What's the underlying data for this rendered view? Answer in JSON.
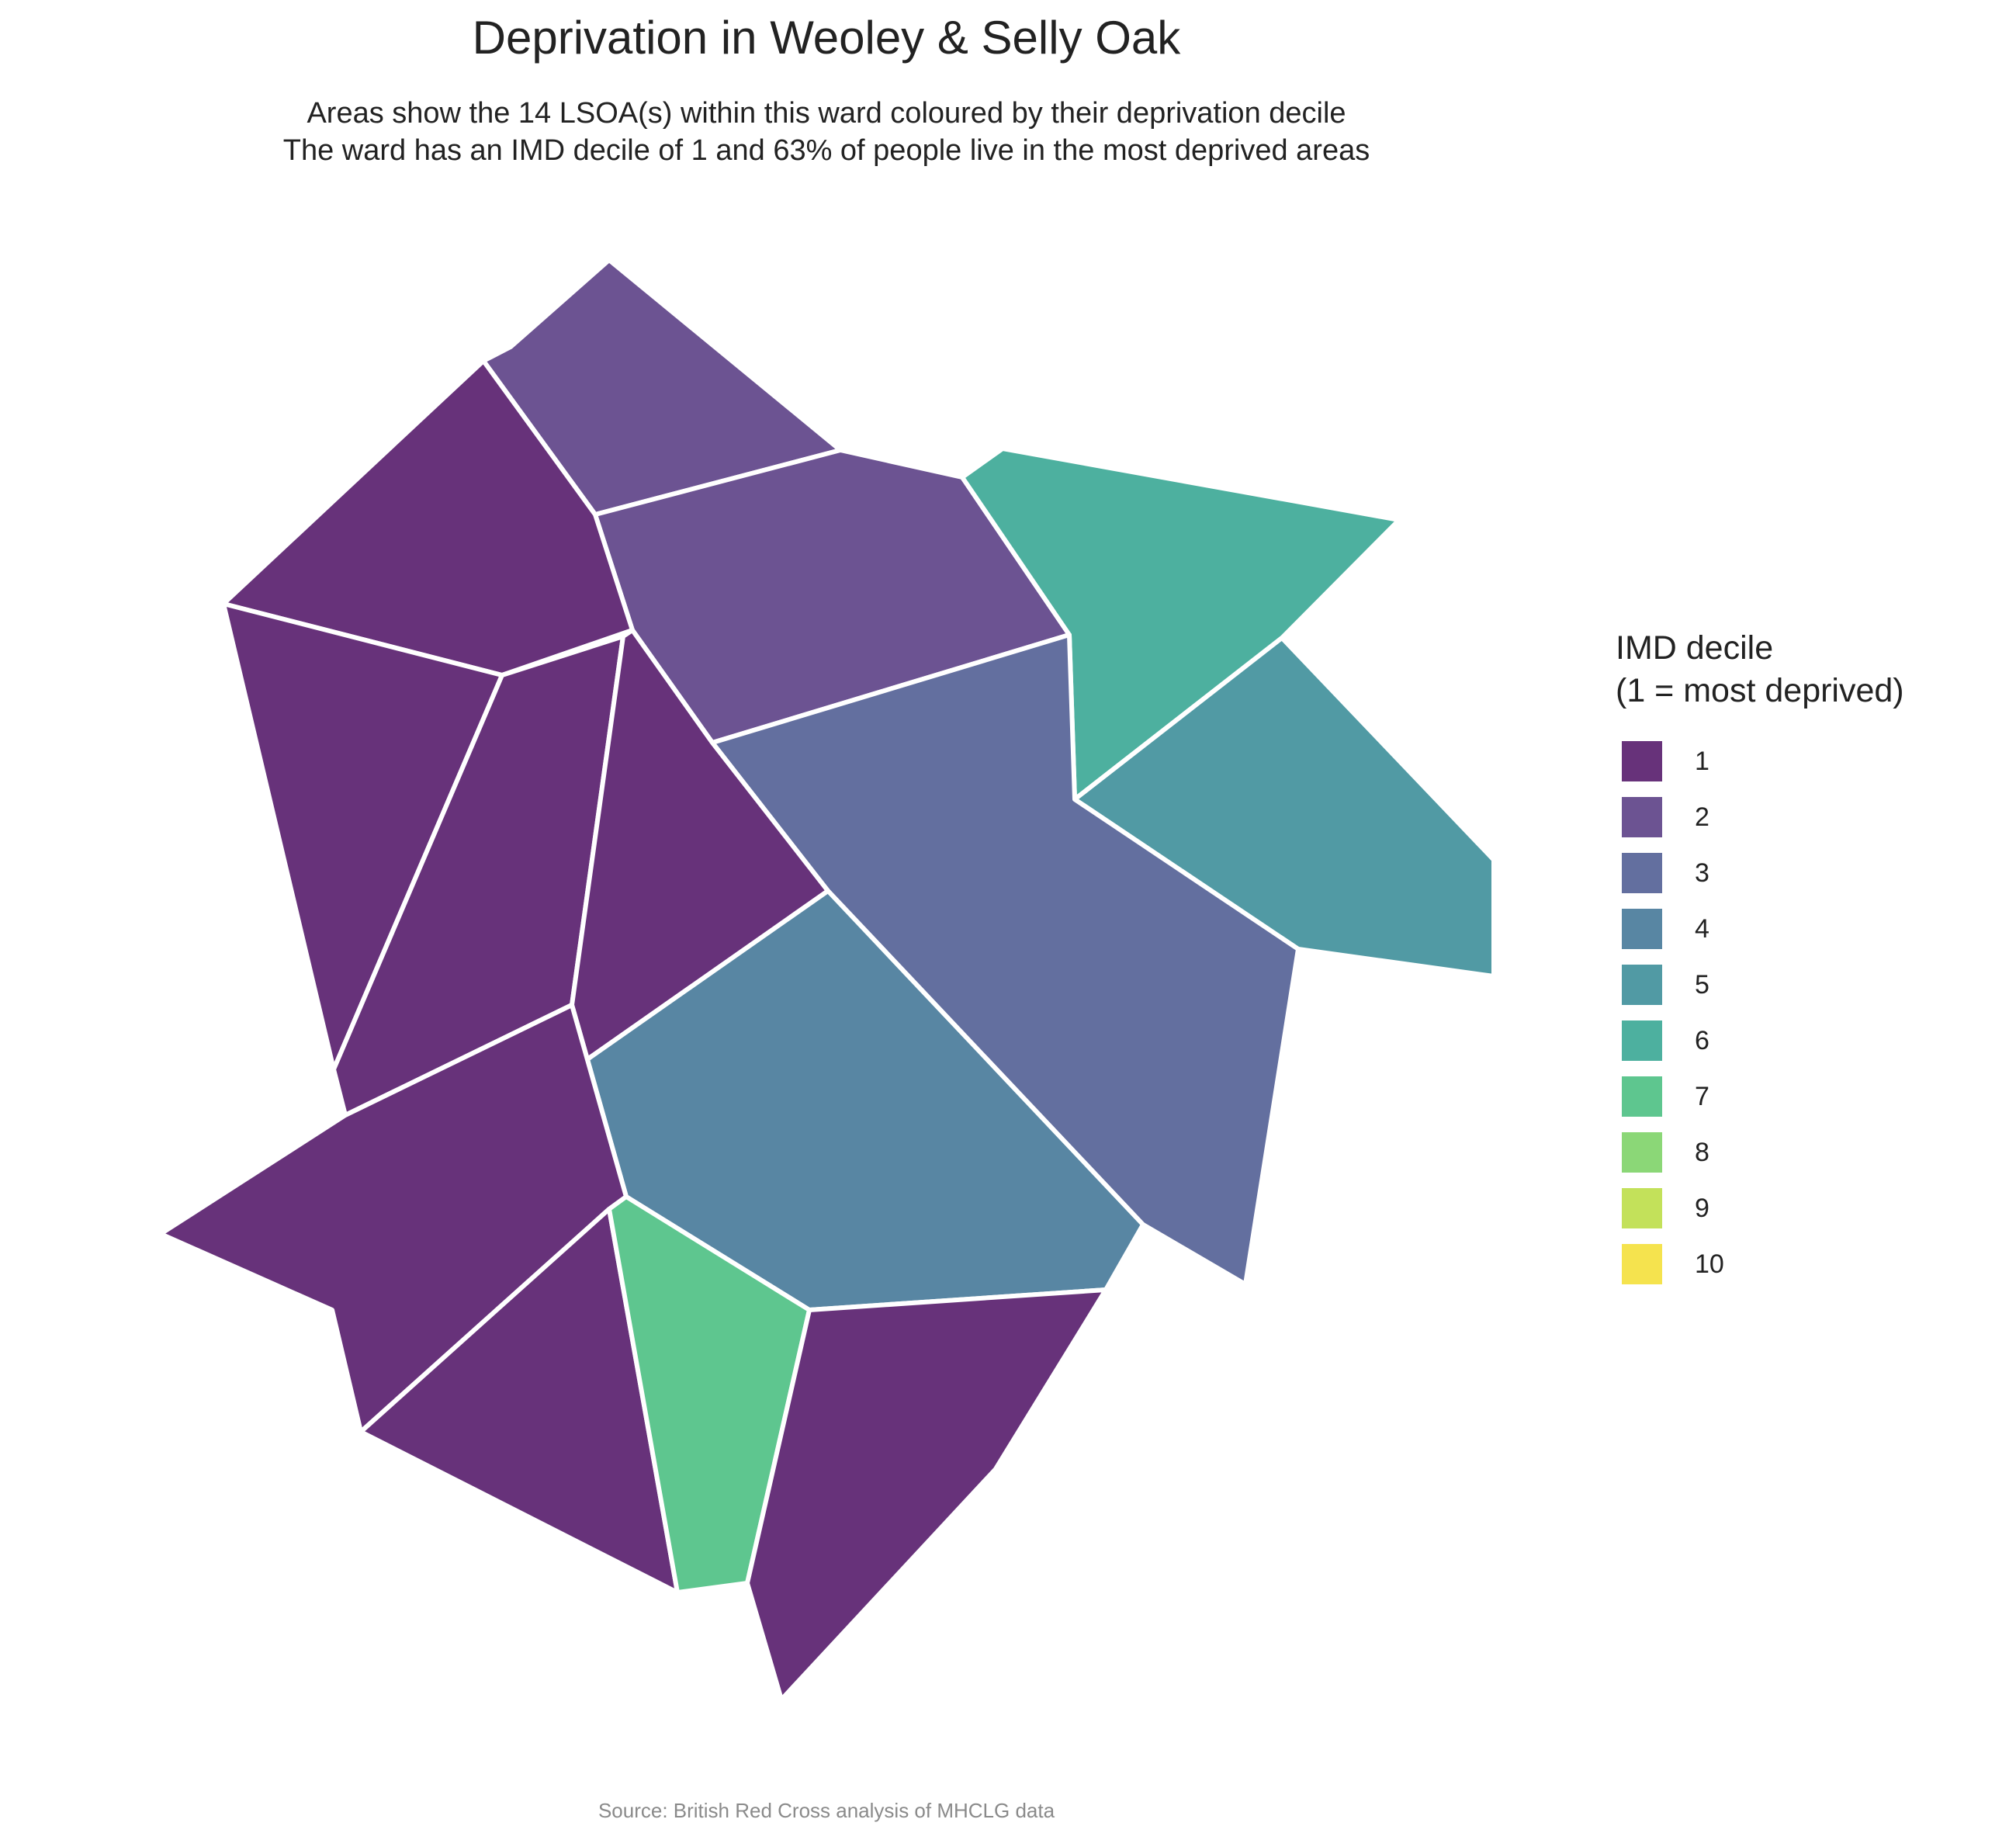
{
  "title": "Deprivation in Weoley & Selly Oak",
  "subtitle": [
    "Areas show the 14 LSOA(s) within this ward coloured by their deprivation decile",
    "The ward has an IMD decile of 1 and 63% of people live in the most deprived areas"
  ],
  "legend": {
    "title": [
      "IMD decile",
      "(1 = most deprived)"
    ],
    "items": [
      {
        "label": "1",
        "color": "#67327a"
      },
      {
        "label": "2",
        "color": "#6c5392"
      },
      {
        "label": "3",
        "color": "#636f9f"
      },
      {
        "label": "4",
        "color": "#5886a3"
      },
      {
        "label": "5",
        "color": "#519aa4"
      },
      {
        "label": "6",
        "color": "#4db09f"
      },
      {
        "label": "7",
        "color": "#5ec68f"
      },
      {
        "label": "8",
        "color": "#8bd777"
      },
      {
        "label": "9",
        "color": "#c3e15a"
      },
      {
        "label": "10",
        "color": "#f5e34e"
      }
    ]
  },
  "map": {
    "area_deciles": {
      "north_tip": 2,
      "north_central": 2,
      "north_east": 6,
      "east": 5,
      "central_east": 3,
      "north_west": 1,
      "west": 1,
      "west_central": 1,
      "central": 1,
      "central_south": 4,
      "south_west": 1,
      "south_west_lower": 1,
      "south_central": 7,
      "south_east": 1
    }
  },
  "caption": "Source: British Red Cross analysis of MHCLG data"
}
